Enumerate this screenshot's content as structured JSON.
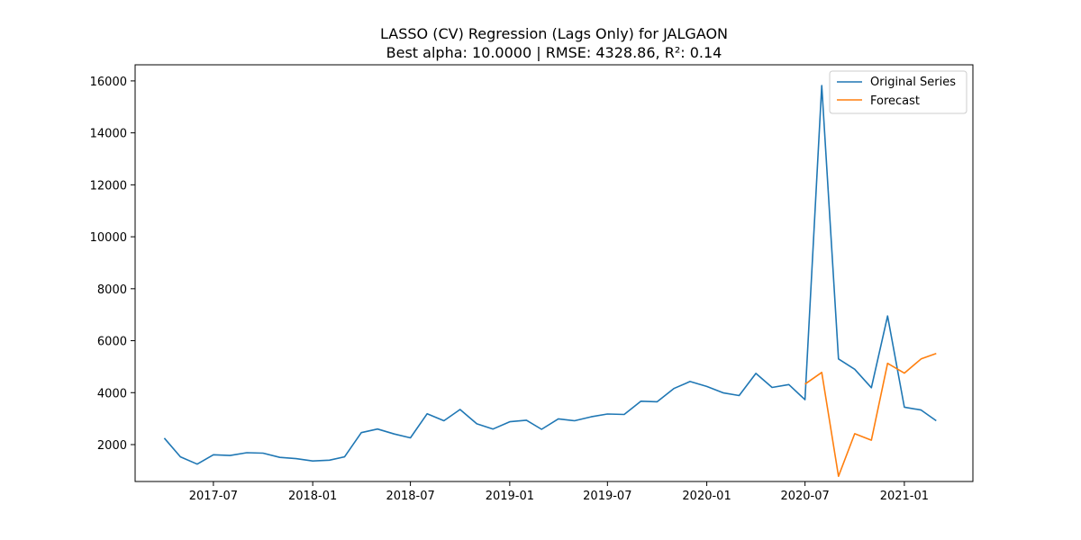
{
  "chart_data": {
    "type": "line",
    "title": "LASSO (CV) Regression (Lags Only) for JALGAON",
    "subtitle": "Best alpha: 10.0000 | RMSE: 4328.86, R²: 0.14",
    "xlabel": "",
    "ylabel": "",
    "x_range": [
      "2017-02-06",
      "2021-05-08"
    ],
    "ylim": [
      580,
      16620
    ],
    "x_ticks": [
      "2017-07",
      "2018-01",
      "2018-07",
      "2019-01",
      "2019-07",
      "2020-01",
      "2020-07",
      "2021-01"
    ],
    "y_ticks": [
      2000,
      4000,
      6000,
      8000,
      10000,
      12000,
      14000,
      16000
    ],
    "grid": false,
    "legend_position": "top-right",
    "series": [
      {
        "name": "Original Series",
        "color": "#1f77b4",
        "x": [
          "2017-04-01",
          "2017-05-01",
          "2017-06-01",
          "2017-07-01",
          "2017-08-01",
          "2017-09-01",
          "2017-10-01",
          "2017-11-01",
          "2017-12-01",
          "2018-01-01",
          "2018-02-01",
          "2018-03-01",
          "2018-04-01",
          "2018-05-01",
          "2018-06-01",
          "2018-07-01",
          "2018-08-01",
          "2018-09-01",
          "2018-10-01",
          "2018-11-01",
          "2018-12-01",
          "2019-01-01",
          "2019-02-01",
          "2019-03-01",
          "2019-04-01",
          "2019-05-01",
          "2019-06-01",
          "2019-07-01",
          "2019-08-01",
          "2019-09-01",
          "2019-10-01",
          "2019-11-01",
          "2019-12-01",
          "2020-01-01",
          "2020-02-01",
          "2020-03-01",
          "2020-04-01",
          "2020-05-01",
          "2020-06-01",
          "2020-07-01",
          "2020-08-01",
          "2020-09-01",
          "2020-10-01",
          "2020-11-01",
          "2020-12-01",
          "2021-01-01",
          "2021-02-01",
          "2021-03-01"
        ],
        "y": [
          2250,
          1530,
          1250,
          1610,
          1580,
          1690,
          1670,
          1510,
          1460,
          1370,
          1400,
          1530,
          2460,
          2600,
          2410,
          2260,
          3190,
          2920,
          3350,
          2800,
          2600,
          2880,
          2940,
          2590,
          2990,
          2920,
          3070,
          3180,
          3160,
          3670,
          3650,
          4160,
          4430,
          4240,
          3990,
          3890,
          4740,
          4200,
          4310,
          3730,
          15820,
          5300,
          4900,
          4190,
          6950,
          3440,
          3330,
          2920
        ]
      },
      {
        "name": "Forecast",
        "color": "#ff7f0e",
        "x": [
          "2020-07-01",
          "2020-08-01",
          "2020-09-01",
          "2020-10-01",
          "2020-11-01",
          "2020-12-01",
          "2021-01-01",
          "2021-02-01",
          "2021-03-01"
        ],
        "y": [
          4330,
          4780,
          780,
          2420,
          2170,
          5130,
          4750,
          5300,
          5510
        ]
      }
    ]
  }
}
